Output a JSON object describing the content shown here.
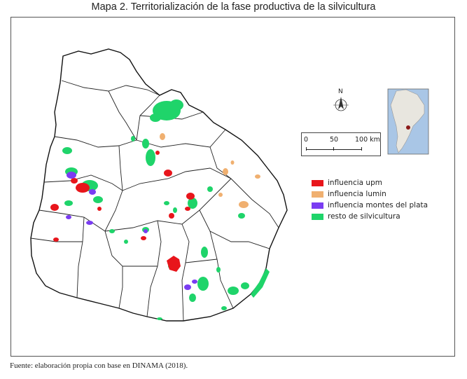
{
  "title": "Mapa 2. Territorialización de la fase productiva de la silvicultura",
  "source": "Fuente: elaboración propia con base en DINAMA (2018).",
  "north_arrow": {
    "label": "N",
    "icon": "north-arrow-icon"
  },
  "scale_bar": {
    "labels": [
      "0",
      "50",
      "100 km"
    ]
  },
  "legend": [
    {
      "label": "influencia upm",
      "color": "#e8151b"
    },
    {
      "label": "influencia lumin",
      "color": "#f0b070"
    },
    {
      "label": "influencia montes del plata",
      "color": "#7a3cf2"
    },
    {
      "label": "resto de silvicultura",
      "color": "#1fd46a"
    }
  ],
  "inset_map": {
    "icon": "south-america-locator-icon",
    "highlight_color": "#8b1a1a"
  }
}
